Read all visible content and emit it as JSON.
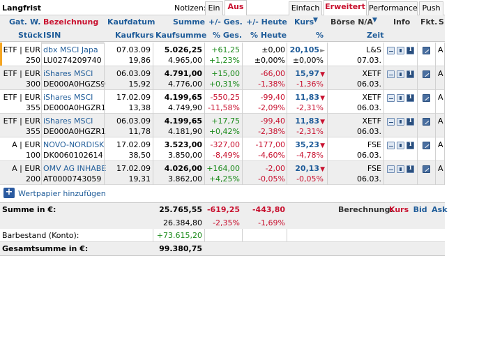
{
  "portfolio_name": "Langfrist",
  "notizen_label": "Notizen:",
  "notes_toggle": {
    "ein": "Ein",
    "aus": "Aus"
  },
  "view_tabs": [
    "Einfach",
    "Erweitert",
    "Performance",
    "Push"
  ],
  "active_view_tab": "Erweitert",
  "columns_row1": {
    "gat": "Gat.",
    "w": "W.",
    "bezeichnung": "Bezeichnung",
    "kaufdatum": "Kaufdatum",
    "summe": "Summe",
    "ges": "+/- Ges.",
    "heute": "+/- Heute",
    "kurs": "Kurs",
    "boerse": "Börse N/A",
    "info": "Info",
    "fkt": "Fkt.",
    "s": "S"
  },
  "columns_row2": {
    "stueck": "Stück",
    "isin": "ISIN",
    "kaufkurs": "Kaufkurs",
    "kaufsumme": "Kaufsumme",
    "pct_ges": "% Ges.",
    "pct_heute": "% Heute",
    "pct": "%",
    "zeit": "Zeit"
  },
  "positions": [
    {
      "gat": "ETF | EUR",
      "stueck": "250",
      "name": "dbx MSCI Japa",
      "isin": "LU0274209740",
      "kaufdatum": "07.03.09",
      "kaufkurs": "19,86",
      "summe": "5.026,25",
      "kaufsumme": "4.965,00",
      "ges": "+61,25",
      "pct_ges": "+1,23%",
      "heute": "±0,00",
      "pct_heute": "±0,00%",
      "kurs": "20,105",
      "kurs_pct": "±0,00%",
      "trend": "flat",
      "boerse": "L&S",
      "zeit": "07.03.",
      "s": "A",
      "ges_color": "green",
      "heute_color": "black"
    },
    {
      "gat": "ETF | EUR",
      "stueck": "300",
      "name": "iShares MSCI",
      "isin": "DE000A0HGZS9",
      "kaufdatum": "06.03.09",
      "kaufkurs": "15,92",
      "summe": "4.791,00",
      "kaufsumme": "4.776,00",
      "ges": "+15,00",
      "pct_ges": "+0,31%",
      "heute": "-66,00",
      "pct_heute": "-1,38%",
      "kurs": "15,97",
      "kurs_pct": "-1,36%",
      "trend": "down",
      "boerse": "XETF",
      "zeit": "06.03.",
      "s": "A",
      "ges_color": "green",
      "heute_color": "red"
    },
    {
      "gat": "ETF | EUR",
      "stueck": "355",
      "name": "iShares MSCI",
      "isin": "DE000A0HGZR1",
      "kaufdatum": "17.02.09",
      "kaufkurs": "13,38",
      "summe": "4.199,65",
      "kaufsumme": "4.749,90",
      "ges": "-550,25",
      "pct_ges": "-11,58%",
      "heute": "-99,40",
      "pct_heute": "-2,09%",
      "kurs": "11,83",
      "kurs_pct": "-2,31%",
      "trend": "down",
      "boerse": "XETF",
      "zeit": "06.03.",
      "s": "A",
      "ges_color": "red",
      "heute_color": "red"
    },
    {
      "gat": "ETF | EUR",
      "stueck": "355",
      "name": "iShares MSCI",
      "isin": "DE000A0HGZR1",
      "kaufdatum": "06.03.09",
      "kaufkurs": "11,78",
      "summe": "4.199,65",
      "kaufsumme": "4.181,90",
      "ges": "+17,75",
      "pct_ges": "+0,42%",
      "heute": "-99,40",
      "pct_heute": "-2,38%",
      "kurs": "11,83",
      "kurs_pct": "-2,31%",
      "trend": "down",
      "boerse": "XETF",
      "zeit": "06.03.",
      "s": "A",
      "ges_color": "green",
      "heute_color": "red"
    },
    {
      "gat": "A | EUR",
      "stueck": "100",
      "name": "NOVO-NORDISK",
      "isin": "DK0060102614",
      "kaufdatum": "17.02.09",
      "kaufkurs": "38,50",
      "summe": "3.523,00",
      "kaufsumme": "3.850,00",
      "ges": "-327,00",
      "pct_ges": "-8,49%",
      "heute": "-177,00",
      "pct_heute": "-4,60%",
      "kurs": "35,23",
      "kurs_pct": "-4,78%",
      "trend": "down",
      "boerse": "FSE",
      "zeit": "06.03.",
      "s": "A",
      "ges_color": "red",
      "heute_color": "red"
    },
    {
      "gat": "A | EUR",
      "stueck": "200",
      "name": "OMV AG INHABE",
      "isin": "AT0000743059",
      "kaufdatum": "17.02.09",
      "kaufkurs": "19,31",
      "summe": "4.026,00",
      "kaufsumme": "3.862,00",
      "ges": "+164,00",
      "pct_ges": "+4,25%",
      "heute": "-2,00",
      "pct_heute": "-0,05%",
      "kurs": "20,13",
      "kurs_pct": "-0,05%",
      "trend": "down",
      "boerse": "FSE",
      "zeit": "06.03.",
      "s": "A",
      "ges_color": "green",
      "heute_color": "red"
    }
  ],
  "add_security_label": "Wertpapier hinzufügen",
  "summary": {
    "summe_label": "Summe in €:",
    "summe": "25.765,55",
    "ges": "-619,25",
    "heute": "-443,80",
    "kaufsumme": "26.384,80",
    "pct_ges": "-2,35%",
    "pct_heute": "-1,69%",
    "barbestand_label": "Barbestand (Konto):",
    "barbestand": "+73.615,20",
    "gesamt_label": "Gesamtsumme in €:",
    "gesamt": "99.380,75",
    "berechnung_label": "Berechnung:",
    "berechnung_options": [
      "Kurs",
      "Bid",
      "Ask"
    ],
    "berechnung_active": "Kurs"
  },
  "colors": {
    "accent_red": "#c8102e",
    "link_blue": "#1f5c99",
    "positive_green": "#1a8a1a",
    "header_bg": "#eeeeee",
    "selection_marker": "#f5a623"
  }
}
